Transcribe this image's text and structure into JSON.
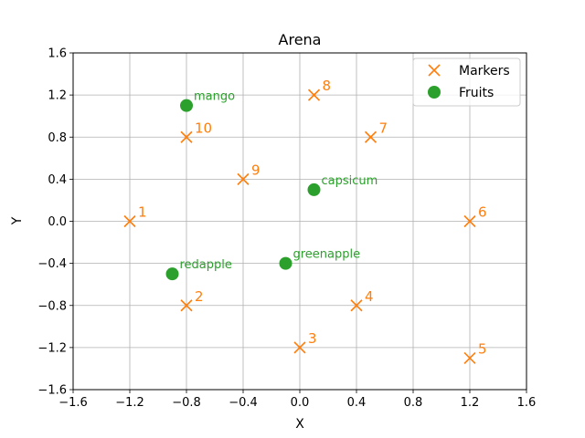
{
  "chart_data": {
    "type": "scatter",
    "title": "Arena",
    "xlabel": "X",
    "ylabel": "Y",
    "xlim": [
      -1.6,
      1.6
    ],
    "ylim": [
      -1.6,
      1.6
    ],
    "xticks": [
      "−1.6",
      "−1.2",
      "−0.8",
      "−0.4",
      "0.0",
      "0.4",
      "0.8",
      "1.2",
      "1.6"
    ],
    "yticks": [
      "−1.6",
      "−1.2",
      "−0.8",
      "−0.4",
      "0.0",
      "0.4",
      "0.8",
      "1.2",
      "1.6"
    ],
    "xtick_values": [
      -1.6,
      -1.2,
      -0.8,
      -0.4,
      0.0,
      0.4,
      0.8,
      1.2,
      1.6
    ],
    "ytick_values": [
      -1.6,
      -1.2,
      -0.8,
      -0.4,
      0.0,
      0.4,
      0.8,
      1.2,
      1.6
    ],
    "grid": true,
    "legend_position": "top-right",
    "series": [
      {
        "name": "Markers",
        "marker": "x",
        "color": "#ff7f0e",
        "points": [
          {
            "label": "1",
            "x": -1.2,
            "y": 0.0
          },
          {
            "label": "2",
            "x": -0.8,
            "y": -0.8
          },
          {
            "label": "3",
            "x": 0.0,
            "y": -1.2
          },
          {
            "label": "4",
            "x": 0.4,
            "y": -0.8
          },
          {
            "label": "5",
            "x": 1.2,
            "y": -1.3
          },
          {
            "label": "6",
            "x": 1.2,
            "y": 0.0
          },
          {
            "label": "7",
            "x": 0.5,
            "y": 0.8
          },
          {
            "label": "8",
            "x": 0.1,
            "y": 1.2
          },
          {
            "label": "9",
            "x": -0.4,
            "y": 0.4
          },
          {
            "label": "10",
            "x": -0.8,
            "y": 0.8
          }
        ]
      },
      {
        "name": "Fruits",
        "marker": "circle",
        "color": "#2ca02c",
        "points": [
          {
            "label": "mango",
            "x": -0.8,
            "y": 1.1
          },
          {
            "label": "capsicum",
            "x": 0.1,
            "y": 0.3
          },
          {
            "label": "redapple",
            "x": -0.9,
            "y": -0.5
          },
          {
            "label": "greenapple",
            "x": -0.1,
            "y": -0.4
          }
        ]
      }
    ]
  }
}
